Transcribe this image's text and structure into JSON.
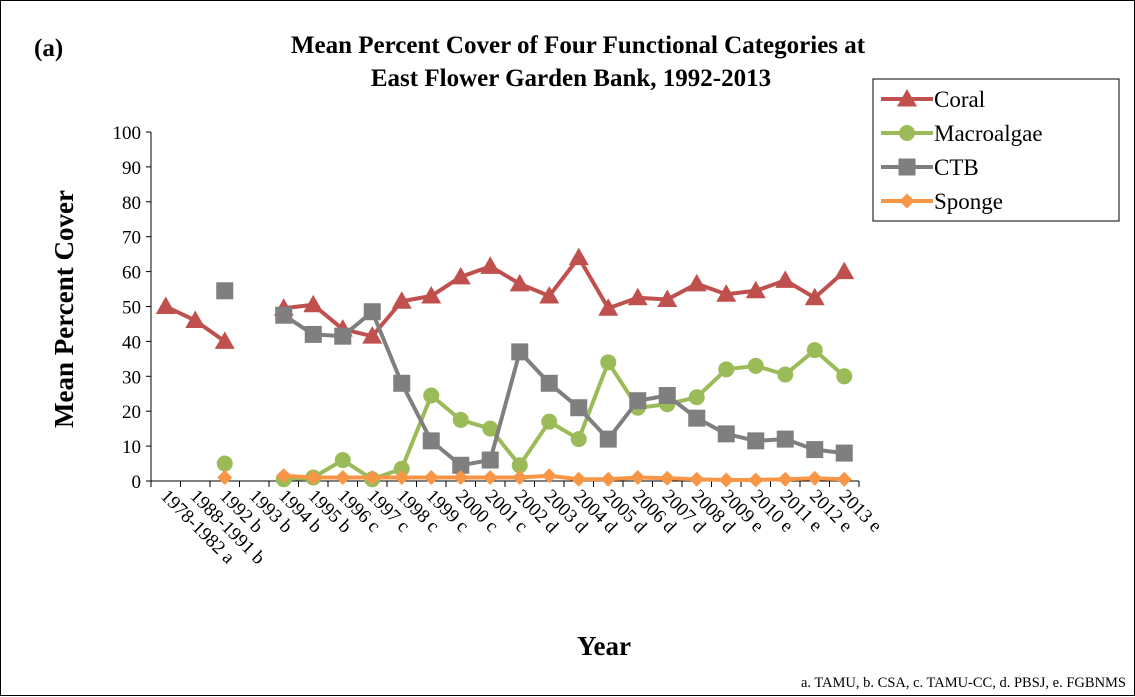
{
  "chart_data": {
    "type": "line",
    "panel_label": "(a)",
    "title": [
      "Mean Percent Cover of Four Functional Categories at",
      "East Flower Garden Bank, 1992-2013"
    ],
    "xlabel": "Year",
    "ylabel": "Mean Percent Cover",
    "ylim": [
      0,
      100
    ],
    "yticks": [
      0,
      10,
      20,
      30,
      40,
      50,
      60,
      70,
      80,
      90,
      100
    ],
    "grid": false,
    "legend_position": "top-right",
    "categories": [
      "1978-1982 a",
      "1988-1991 b",
      "1992 b",
      "1993 b",
      "1994 b",
      "1995 b",
      "1996 c",
      "1997 c",
      "1998 c",
      "1999 c",
      "2000 c",
      "2001 c",
      "2002 d",
      "2003 d",
      "2004 d",
      "2005 d",
      "2006 d",
      "2007 d",
      "2008 d",
      "2009 e",
      "2010 e",
      "2011 e",
      "2012 e",
      "2013 e"
    ],
    "series": [
      {
        "name": "Coral",
        "color": "#c0504d",
        "marker": "triangle",
        "values": [
          50,
          46,
          40,
          null,
          49.5,
          50.5,
          43.5,
          41.5,
          51.5,
          53,
          58.5,
          61.5,
          56.5,
          53,
          64,
          49.5,
          52.5,
          52,
          56.5,
          53.5,
          54.5,
          57.5,
          52.5,
          60
        ]
      },
      {
        "name": "Macroalgae",
        "color": "#9bbb59",
        "marker": "circle",
        "values": [
          null,
          null,
          5,
          null,
          0.5,
          1,
          6,
          0.5,
          3.5,
          24.5,
          17.5,
          15,
          4.5,
          17,
          12,
          34,
          21,
          22,
          24,
          32,
          33,
          30.5,
          37.5,
          30
        ]
      },
      {
        "name": "CTB",
        "color": "#7f7f7f",
        "marker": "square",
        "values": [
          null,
          null,
          54.5,
          null,
          47.5,
          42,
          41.5,
          48.5,
          28,
          11.5,
          4.5,
          6,
          37,
          28,
          21,
          12,
          23,
          24.5,
          18,
          13.5,
          11.5,
          12,
          9,
          8
        ]
      },
      {
        "name": "Sponge",
        "color": "#f79646",
        "marker": "diamond",
        "values": [
          null,
          null,
          1,
          null,
          1.5,
          1,
          1,
          1,
          1,
          1,
          1,
          1,
          1,
          1.5,
          0.5,
          0.5,
          1,
          0.8,
          0.5,
          0.3,
          0.3,
          0.5,
          0.8,
          0.5
        ]
      }
    ]
  },
  "footnote": "a. TAMU, b. CSA, c. TAMU-CC, d. PBSJ, e. FGBNMS"
}
